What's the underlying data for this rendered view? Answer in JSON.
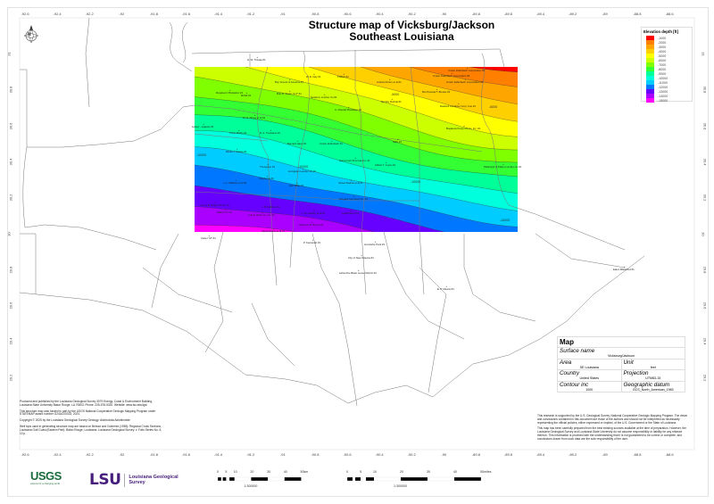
{
  "title": {
    "line1": "Structure map of Vicksburg/Jackson",
    "line2": "Southeast Louisiana"
  },
  "axes": {
    "longitudes": [
      "-92.6",
      "-92.4",
      "-92.2",
      "-92",
      "-91.8",
      "-91.6",
      "-91.4",
      "-91.2",
      "-91",
      "-90.8",
      "-90.6",
      "-90.4",
      "-90.2",
      "-90",
      "-89.8",
      "-89.6",
      "-89.4",
      "-89.2",
      "-89",
      "-88.8",
      "-88.6"
    ],
    "latitudes": [
      "31",
      "30.8",
      "30.6",
      "30.4",
      "30.2",
      "30",
      "29.8",
      "29.6",
      "29.4",
      "29.2"
    ]
  },
  "legend": {
    "title": "Elevation depth [ft]",
    "items": [
      {
        "label": "-1000",
        "color": "#ff0000"
      },
      {
        "label": "-2000",
        "color": "#ff7f00"
      },
      {
        "label": "-3000",
        "color": "#ffa500"
      },
      {
        "label": "-4000",
        "color": "#ffd000"
      },
      {
        "label": "-5000",
        "color": "#ffff00"
      },
      {
        "label": "-6000",
        "color": "#ccff00"
      },
      {
        "label": "-7000",
        "color": "#80ff00"
      },
      {
        "label": "-8000",
        "color": "#33ff33"
      },
      {
        "label": "-9000",
        "color": "#00ff99"
      },
      {
        "label": "-10000",
        "color": "#00ffdd"
      },
      {
        "label": "-11000",
        "color": "#00ccff"
      },
      {
        "label": "-12000",
        "color": "#0077ff"
      },
      {
        "label": "-13000",
        "color": "#6600ff"
      },
      {
        "label": "-14000",
        "color": "#aa00ff"
      },
      {
        "label": "-15000",
        "color": "#ff00ff"
      }
    ]
  },
  "contour_labels": [
    "-10000",
    "-10000",
    "-10000",
    "-5000",
    "-6000",
    "-10000"
  ],
  "wells": [
    "H. W. Trisuaa #1",
    "Boy Scouts of America #1",
    "Roseberm Plantation #1",
    "Mcfell #1",
    "Bob R. Jones \"A-6\" #1",
    "Newbury Lumber Co #1",
    "A. Claudel Plantation #1",
    "W. N. Mcray et al #1",
    "Lettow - Lajaune #1",
    "Trave Martin #1",
    "D. A. Trausteve #1",
    "Bernard Hace #1",
    "Crown Zellerbach #1",
    "Crown Zellerbach Corporation #1",
    "Crown Zellerbach Corporation #3",
    "Crown Zellerbach Corporation #2",
    "Andrew Driem et al #1",
    "Mrs Pamela T. Brooks #1",
    "Murphy Rofinal #1",
    "Redwell Container Corp. Fee #1",
    "Bogaluca Pump Oil Co. Inc. #1",
    "Sally #1",
    "Phillips #1",
    "W. E. Day #1",
    "Martin J. Rahas #1",
    "Thompson #1",
    "Livingston Lumber Co #1",
    "Hammond Oil & Gas Co. #1",
    "Crayhome #1",
    "J. A. Williams et al #1",
    "Earl Miller #1",
    "James Rudow et al #1",
    "Leroy R. Bright Oil Co. #1",
    "Wilson \"A\" #1",
    "J. B. Sublime #1",
    "Lois E. Beck Co. Inc. #1",
    "Douglas Campbell Co. #1",
    "L. W. Hickley et al #1",
    "Leldia Nixon #1",
    "Clarence D. Boyce #1",
    "Sarah Evans et al #1",
    "Gilbert T. Joyce #1",
    "Pittsburgh & Plains Lumber Co #1",
    "Carter \"M\" #1",
    "P. Kerpenah #1",
    "Gondorfer Park #1",
    "City of New Orleans #1",
    "Lafourche Basin Levee District #1",
    "E. P. Means #1",
    "Eaton Blackford #1"
  ],
  "info": {
    "header": "Map",
    "surface_name_label": "Surface name",
    "surface_name": "Vicksburg/Jackson",
    "area_label": "Area",
    "area": "SE Louisiana",
    "unit_label": "Unit",
    "unit": "feet",
    "country_label": "Country",
    "country": "United States",
    "projection_label": "Projection",
    "projection": "UTM83-15",
    "contour_label": "Contour inc",
    "contour": "1000",
    "datum_label": "Geographic datum",
    "datum": "GCS_North_American_1983"
  },
  "disclaimer": [
    "This research is supported by the U.S. Geological Survey, National Cooperative Geologic Mapping Program. The views and conclusions contained in this document are those of the authors and should not be interpreted as necessarily representing the official policies, either expressed or implied, of the U.S. Government or the State of Louisiana.",
    "This map has been carefully prepared from the best existing sources available at the time of preparation. However, the Louisiana Geological Survey and Louisiana State University do not assume responsibility or liability for any reliance thereon. This information is provided with the understanding that it is not guaranteed to be correct or complete, and conclusions drawn from such data are the sole responsibility of the user."
  ],
  "credits": [
    "Produced and published by the Louisiana Geological Survey 3079 Energy, Coast & Environment Building, Louisiana State University Baton Rouge, LA 70803. Phone: 225-578-5320. Website: www.lsu.edu/lgs/",
    "This structure map was funded in part by the USGS National Cooperative Geologic Mapping Program under STATEMAP award number G24AC00333, 2024.",
    "Copyright © 2025 by the Louisiana Geological Survey Geology: Akinbobola Akinbinmide",
    "Well tops used in generating structure map are based on Bebout and Gutierrez (1983): Regional Cross Sections, Louisiana Gulf Coast (Eastern Part). Baton Rouge, Louisiana: Louisiana Geological Survey. v. Folio Series No. 6, 10 p."
  ],
  "logos": {
    "usgs": "USGS",
    "usgs_tagline": "science for a changing world",
    "lsu": "LSU",
    "lgs_line1": "Louisiana Geological",
    "lgs_line2": "Survey"
  },
  "scalebars": {
    "km": {
      "ticks": [
        "0",
        "5",
        "10",
        "20",
        "30",
        "40",
        "50km"
      ],
      "ratio": "1:300000"
    },
    "miles": {
      "ticks": [
        "0",
        "5",
        "10",
        "20",
        "30",
        "40",
        "50miles"
      ],
      "ratio": "1:300000"
    }
  },
  "north_arrow": {
    "label": "N"
  }
}
